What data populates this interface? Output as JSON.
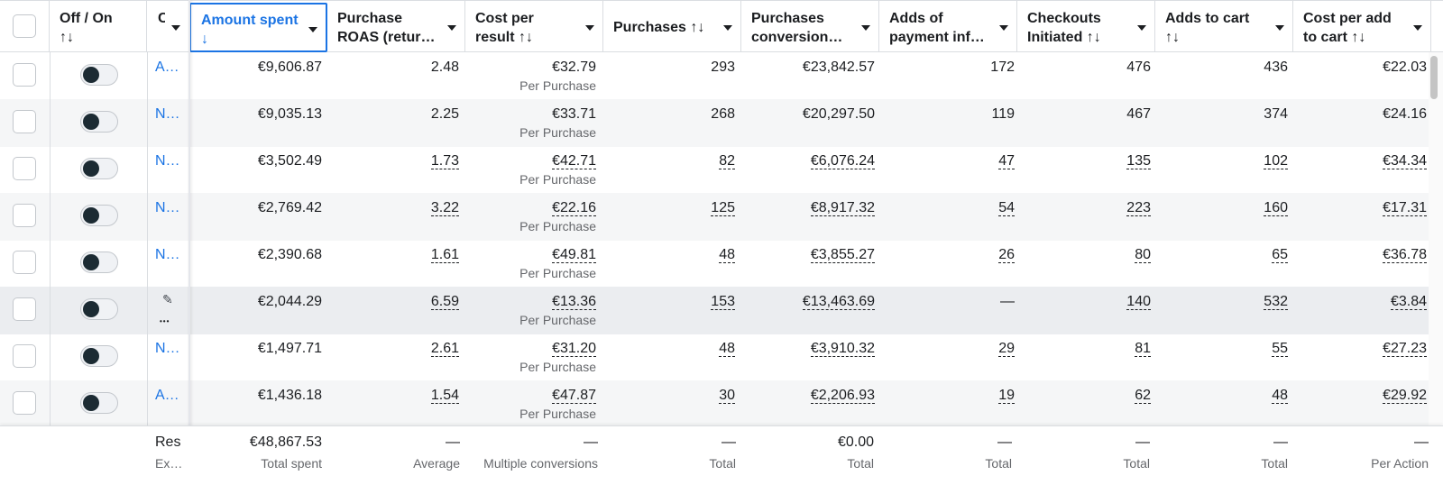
{
  "header": {
    "columns": [
      {
        "label": "Off / On\n↑↓"
      },
      {
        "label": "C"
      },
      {
        "label": "Amount spent\n↓"
      },
      {
        "label": "Purchase\nROAS (retur…"
      },
      {
        "label": "Cost per\nresult ↑↓"
      },
      {
        "label": "Purchases ↑↓"
      },
      {
        "label": "Purchases\nconversion…"
      },
      {
        "label": "Adds of\npayment inf…"
      },
      {
        "label": "Checkouts\nInitiated ↑↓"
      },
      {
        "label": "Adds to cart\n↑↓"
      },
      {
        "label": "Cost per add\nto cart ↑↓"
      }
    ]
  },
  "rows": [
    {
      "name": "A…",
      "spent": "€9,606.87",
      "roas": "2.48",
      "cpr": "€32.79",
      "cpr_sub": "Per Purchase",
      "purchases": "293",
      "conv": "€23,842.57",
      "api": "172",
      "checkouts": "476",
      "atc": "436",
      "cpatc": "€22.03"
    },
    {
      "name": "N…",
      "spent": "€9,035.13",
      "roas": "2.25",
      "cpr": "€33.71",
      "cpr_sub": "Per Purchase",
      "purchases": "268",
      "conv": "€20,297.50",
      "api": "119",
      "checkouts": "467",
      "atc": "374",
      "cpatc": "€24.16"
    },
    {
      "name": "N…",
      "spent": "€3,502.49",
      "roas": "1.73",
      "cpr": "€42.71",
      "cpr_sub": "Per Purchase",
      "purchases": "82",
      "conv": "€6,076.24",
      "api": "47",
      "checkouts": "135",
      "atc": "102",
      "cpatc": "€34.34"
    },
    {
      "name": "N…",
      "spent": "€2,769.42",
      "roas": "3.22",
      "cpr": "€22.16",
      "cpr_sub": "Per Purchase",
      "purchases": "125",
      "conv": "€8,917.32",
      "api": "54",
      "checkouts": "223",
      "atc": "160",
      "cpatc": "€17.31"
    },
    {
      "name": "N…",
      "spent": "€2,390.68",
      "roas": "1.61",
      "cpr": "€49.81",
      "cpr_sub": "Per Purchase",
      "purchases": "48",
      "conv": "€3,855.27",
      "api": "26",
      "checkouts": "80",
      "atc": "65",
      "cpatc": "€36.78"
    },
    {
      "name": "",
      "spent": "€2,044.29",
      "roas": "6.59",
      "cpr": "€13.36",
      "cpr_sub": "Per Purchase",
      "purchases": "153",
      "conv": "€13,463.69",
      "api": "—",
      "checkouts": "140",
      "atc": "532",
      "cpatc": "€3.84"
    },
    {
      "name": "N…",
      "spent": "€1,497.71",
      "roas": "2.61",
      "cpr": "€31.20",
      "cpr_sub": "Per Purchase",
      "purchases": "48",
      "conv": "€3,910.32",
      "api": "29",
      "checkouts": "81",
      "atc": "55",
      "cpatc": "€27.23"
    },
    {
      "name": "A…",
      "spent": "€1,436.18",
      "roas": "1.54",
      "cpr": "€47.87",
      "cpr_sub": "Per Purchase",
      "purchases": "30",
      "conv": "€2,206.93",
      "api": "19",
      "checkouts": "62",
      "atc": "48",
      "cpatc": "€29.92"
    }
  ],
  "footer": {
    "name": "Res",
    "name_sub": "Ex…",
    "spent": "€48,867.53",
    "spent_sub": "Total spent",
    "roas": "—",
    "roas_sub": "Average",
    "cpr": "—",
    "cpr_sub": "Multiple conversions",
    "purchases": "—",
    "purchases_sub": "Total",
    "conv": "€0.00",
    "conv_sub": "Total",
    "api": "—",
    "api_sub": "Total",
    "checkouts": "—",
    "checkouts_sub": "Total",
    "atc": "—",
    "atc_sub": "Total",
    "cpatc": "—",
    "cpatc_sub": "Per Action"
  },
  "icons": {
    "row_edit": "pencil-icon",
    "row_more": "more-icon",
    "sort_caret": "caret-down-icon"
  },
  "colors": {
    "accent": "#1b74e4",
    "toggle_knob": "#1c2b33",
    "row_alt": "#f5f6f7"
  }
}
